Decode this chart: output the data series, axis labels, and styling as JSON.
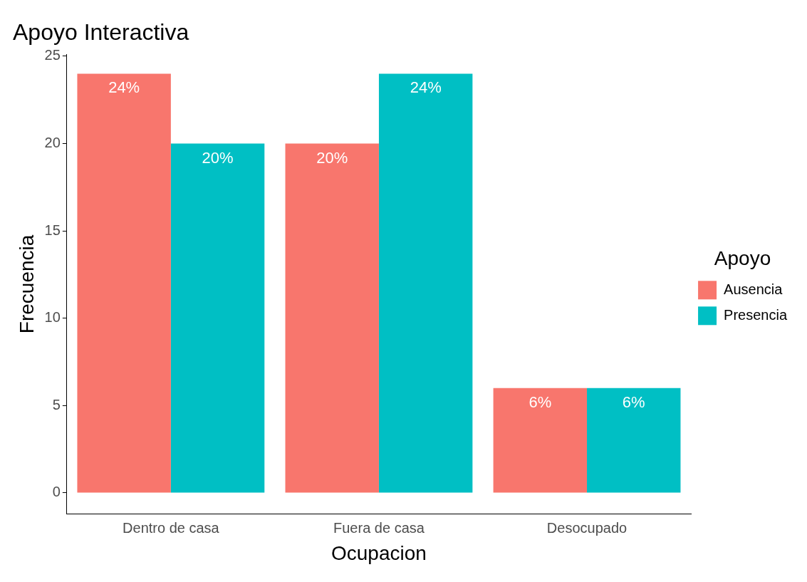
{
  "chart_data": {
    "type": "bar",
    "title": "Apoyo Interactiva",
    "xlabel": "Ocupacion",
    "ylabel": "Frecuencia",
    "legend_title": "Apoyo",
    "legend": "right",
    "grid": false,
    "categories": [
      "Dentro de casa",
      "Fuera de casa",
      "Desocupado"
    ],
    "series": [
      {
        "name": "Ausencia",
        "color": "#f8766d",
        "values": [
          24,
          20,
          6
        ],
        "value_labels": [
          "24%",
          "20%",
          "6%"
        ]
      },
      {
        "name": "Presencia",
        "color": "#00bfc4",
        "values": [
          20,
          24,
          6
        ],
        "value_labels": [
          "20%",
          "24%",
          "6%"
        ]
      }
    ],
    "ylim": [
      -1.2,
      25.1
    ],
    "yticks": [
      0,
      5,
      10,
      15,
      20,
      25
    ]
  }
}
